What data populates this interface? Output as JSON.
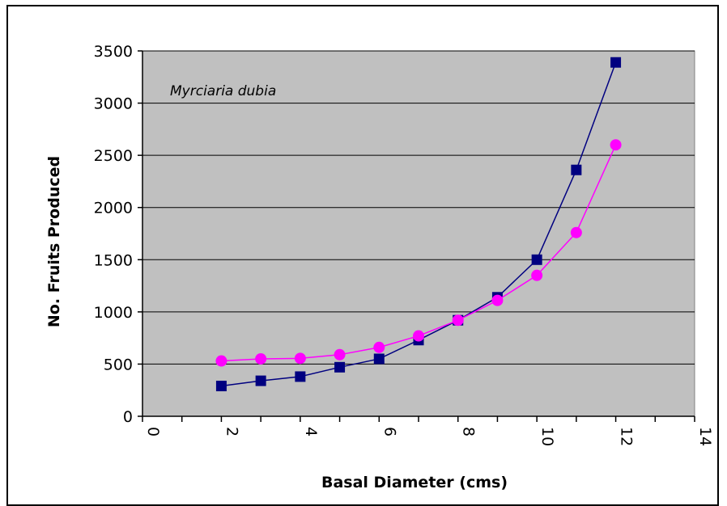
{
  "chart_data": {
    "type": "line",
    "title": "",
    "annotation": "Myrciaria dubia",
    "xlabel": "Basal Diameter (cms)",
    "ylabel": "No. Fruits Produced",
    "xlim": [
      0,
      14
    ],
    "ylim": [
      0,
      3500
    ],
    "x_ticks": [
      "0",
      "2",
      "4",
      "6",
      "8",
      "10",
      "12",
      "14"
    ],
    "y_ticks": [
      "0",
      "500",
      "1000",
      "1500",
      "2000",
      "2500",
      "3000",
      "3500"
    ],
    "grid": "horizontal",
    "legend": "none",
    "colors": {
      "plot_background": "#c0c0c0",
      "series1": "#000080",
      "series2": "#ff00ff"
    },
    "x": [
      2,
      3,
      4,
      5,
      6,
      7,
      8,
      9,
      10,
      11,
      12
    ],
    "series": [
      {
        "marker": "square",
        "color": "#000080",
        "values": [
          290,
          340,
          380,
          470,
          550,
          730,
          920,
          1140,
          1500,
          2360,
          3390
        ]
      },
      {
        "marker": "circle",
        "color": "#ff00ff",
        "values": [
          530,
          550,
          555,
          590,
          660,
          770,
          920,
          1110,
          1350,
          1760,
          2600
        ]
      }
    ]
  }
}
